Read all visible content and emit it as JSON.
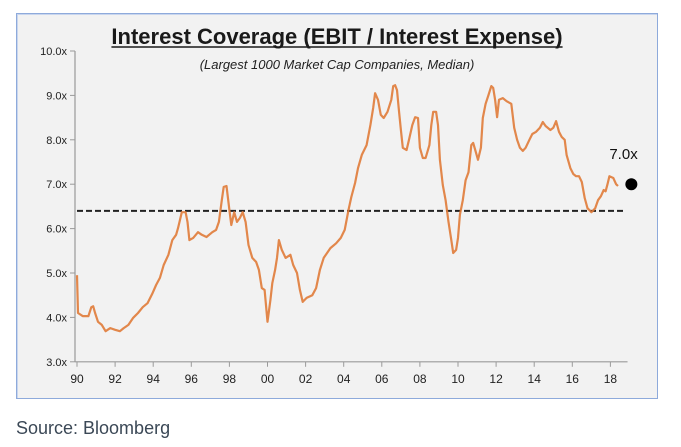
{
  "chart_data": {
    "type": "line",
    "title": "Interest Coverage (EBIT / Interest Expense)",
    "subtitle": "(Largest 1000 Market Cap Companies, Median)",
    "xlabel": "",
    "ylabel": "",
    "xlim": [
      1990,
      2018.9
    ],
    "ylim": [
      3.0,
      10.0
    ],
    "grid": false,
    "legend": "none",
    "x_ticks": [
      {
        "value": 1990,
        "label": "90"
      },
      {
        "value": 1992,
        "label": "92"
      },
      {
        "value": 1994,
        "label": "94"
      },
      {
        "value": 1996,
        "label": "96"
      },
      {
        "value": 1998,
        "label": "98"
      },
      {
        "value": 2000,
        "label": "00"
      },
      {
        "value": 2002,
        "label": "02"
      },
      {
        "value": 2004,
        "label": "04"
      },
      {
        "value": 2006,
        "label": "06"
      },
      {
        "value": 2008,
        "label": "08"
      },
      {
        "value": 2010,
        "label": "10"
      },
      {
        "value": 2012,
        "label": "12"
      },
      {
        "value": 2014,
        "label": "14"
      },
      {
        "value": 2016,
        "label": "16"
      },
      {
        "value": 2018,
        "label": "18"
      }
    ],
    "y_ticks": [
      {
        "value": 3,
        "label": "3.0x"
      },
      {
        "value": 4,
        "label": "4.0x"
      },
      {
        "value": 5,
        "label": "5.0x"
      },
      {
        "value": 6,
        "label": "6.0x"
      },
      {
        "value": 7,
        "label": "7.0x"
      },
      {
        "value": 8,
        "label": "8.0x"
      },
      {
        "value": 9,
        "label": "9.0x"
      },
      {
        "value": 10,
        "label": "10.0x"
      }
    ],
    "series": [
      {
        "name": "Interest Coverage (median)",
        "color": "#e07b39",
        "x": [
          1990.0,
          1990.05,
          1990.3,
          1990.6,
          1990.75,
          1990.85,
          1990.95,
          1991.1,
          1991.3,
          1991.5,
          1991.75,
          1992.0,
          1992.25,
          1992.45,
          1992.7,
          1992.95,
          1993.2,
          1993.45,
          1993.7,
          1993.95,
          1994.15,
          1994.35,
          1994.55,
          1994.8,
          1995.0,
          1995.2,
          1995.3,
          1995.5,
          1995.7,
          1995.8,
          1995.9,
          1996.1,
          1996.35,
          1996.55,
          1996.8,
          1997.1,
          1997.3,
          1997.45,
          1997.6,
          1997.7,
          1997.85,
          1998.0,
          1998.1,
          1998.25,
          1998.4,
          1998.55,
          1998.7,
          1998.85,
          1999.0,
          1999.2,
          1999.4,
          1999.55,
          1999.7,
          1999.85,
          2000.0,
          2000.15,
          2000.25,
          2000.4,
          2000.5,
          2000.6,
          2000.75,
          2000.95,
          2001.2,
          2001.35,
          2001.55,
          2001.7,
          2001.85,
          2002.05,
          2002.35,
          2002.55,
          2002.75,
          2002.95,
          2003.3,
          2003.6,
          2003.85,
          2004.05,
          2004.25,
          2004.4,
          2004.6,
          2004.75,
          2004.95,
          2005.2,
          2005.4,
          2005.55,
          2005.65,
          2005.8,
          2005.95,
          2006.1,
          2006.3,
          2006.5,
          2006.6,
          2006.7,
          2006.8,
          2006.9,
          2007.0,
          2007.1,
          2007.3,
          2007.45,
          2007.6,
          2007.75,
          2007.9,
          2008.0,
          2008.15,
          2008.3,
          2008.5,
          2008.6,
          2008.7,
          2008.85,
          2008.95,
          2009.05,
          2009.2,
          2009.35,
          2009.5,
          2009.65,
          2009.75,
          2009.9,
          2010.0,
          2010.1,
          2010.25,
          2010.4,
          2010.55,
          2010.7,
          2010.8,
          2010.95,
          2011.05,
          2011.2,
          2011.3,
          2011.45,
          2011.6,
          2011.75,
          2011.85,
          2011.95,
          2012.05,
          2012.15,
          2012.35,
          2012.55,
          2012.8,
          2012.95,
          2013.1,
          2013.25,
          2013.4,
          2013.55,
          2013.75,
          2013.9,
          2014.1,
          2014.3,
          2014.45,
          2014.6,
          2014.85,
          2015.0,
          2015.15,
          2015.3,
          2015.45,
          2015.6,
          2015.7,
          2015.9,
          2016.05,
          2016.2,
          2016.35,
          2016.5,
          2016.65,
          2016.8,
          2017.0,
          2017.2,
          2017.35,
          2017.5,
          2017.65,
          2017.75,
          2017.85,
          2017.95,
          2018.15,
          2018.3,
          2018.4
        ],
        "values": [
          4.95,
          4.1,
          4.03,
          4.03,
          4.23,
          4.25,
          4.1,
          3.9,
          3.83,
          3.69,
          3.76,
          3.72,
          3.69,
          3.76,
          3.83,
          3.99,
          4.1,
          4.23,
          4.32,
          4.53,
          4.73,
          4.89,
          5.18,
          5.41,
          5.74,
          5.86,
          6.01,
          6.37,
          6.37,
          6.15,
          5.74,
          5.79,
          5.92,
          5.86,
          5.81,
          5.92,
          5.97,
          6.15,
          6.64,
          6.94,
          6.96,
          6.42,
          6.08,
          6.37,
          6.15,
          6.24,
          6.37,
          6.15,
          5.63,
          5.34,
          5.25,
          5.07,
          4.66,
          4.62,
          3.9,
          4.39,
          4.77,
          5.07,
          5.34,
          5.74,
          5.52,
          5.34,
          5.41,
          5.18,
          5.0,
          4.62,
          4.35,
          4.44,
          4.5,
          4.66,
          5.07,
          5.34,
          5.56,
          5.67,
          5.79,
          5.97,
          6.42,
          6.71,
          7.03,
          7.36,
          7.66,
          7.88,
          8.33,
          8.72,
          9.05,
          8.9,
          8.56,
          8.49,
          8.63,
          8.9,
          9.21,
          9.23,
          9.12,
          8.67,
          8.22,
          7.82,
          7.77,
          8.04,
          8.33,
          8.51,
          8.49,
          7.82,
          7.59,
          7.59,
          7.88,
          8.33,
          8.63,
          8.63,
          8.33,
          7.55,
          6.98,
          6.64,
          6.15,
          5.74,
          5.45,
          5.52,
          5.79,
          6.31,
          6.64,
          7.09,
          7.27,
          7.88,
          7.93,
          7.7,
          7.55,
          7.82,
          8.49,
          8.81,
          9.01,
          9.21,
          9.17,
          8.9,
          8.51,
          8.9,
          8.94,
          8.87,
          8.81,
          8.27,
          8.0,
          7.82,
          7.75,
          7.82,
          8.0,
          8.13,
          8.18,
          8.27,
          8.4,
          8.31,
          8.22,
          8.27,
          8.42,
          8.18,
          8.06,
          8.0,
          7.66,
          7.36,
          7.23,
          7.18,
          7.18,
          7.05,
          6.69,
          6.46,
          6.37,
          6.46,
          6.64,
          6.73,
          6.87,
          6.84,
          7.0,
          7.18,
          7.14,
          7.0,
          6.96
        ]
      }
    ],
    "reference_line": {
      "value": 6.4,
      "x_start": 1990,
      "x_end": 2018.8,
      "style": "dashed",
      "color": "#222222"
    },
    "latest_point": {
      "x": 2019.1,
      "value": 7.0,
      "label": "7.0x",
      "color": "#000000"
    }
  },
  "source": "Source: Bloomberg"
}
